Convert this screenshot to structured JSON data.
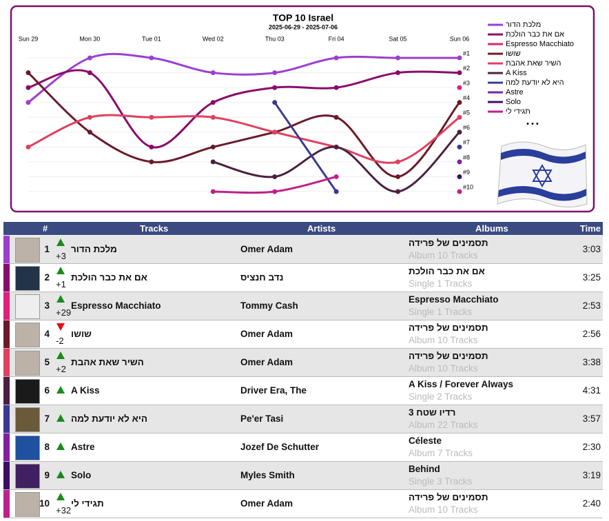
{
  "chart_data": {
    "type": "line",
    "title": "TOP 10 Israel",
    "subtitle": "2025-06-29 - 2025-07-06",
    "categories": [
      "Sun 29",
      "Mon 30",
      "Tue 01",
      "Wed 02",
      "Thu 03",
      "Fri 04",
      "Sat 05",
      "Sun 06"
    ],
    "y_reversed": true,
    "ylim": [
      1,
      10
    ],
    "yticks": [
      {
        "value": 1,
        "label": "#1"
      },
      {
        "value": 2,
        "label": "#2"
      },
      {
        "value": 3,
        "label": "#3"
      },
      {
        "value": 4,
        "label": "#4"
      },
      {
        "value": 5,
        "label": "#5"
      },
      {
        "value": 6,
        "label": "#6"
      },
      {
        "value": 7,
        "label": "#7"
      },
      {
        "value": 8,
        "label": "#8"
      },
      {
        "value": 9,
        "label": "#9"
      },
      {
        "value": 10,
        "label": "#10"
      }
    ],
    "grid": true,
    "series": [
      {
        "name": "מלכת הדור",
        "color": "#9b3fd0",
        "values": [
          4,
          1,
          1,
          2,
          2,
          1,
          1,
          1
        ]
      },
      {
        "name": "אם את כבר הולכת",
        "color": "#8b0a6b",
        "values": [
          3,
          2,
          7,
          4,
          3,
          3,
          2,
          2
        ]
      },
      {
        "name": "Espresso Macchiato",
        "color": "#e0207a",
        "values": [
          null,
          null,
          null,
          null,
          null,
          null,
          null,
          3
        ]
      },
      {
        "name": "שושו",
        "color": "#6b1a2a",
        "values": [
          2,
          6,
          8,
          7,
          6,
          5,
          9,
          4
        ]
      },
      {
        "name": "השיר שאת אהבת",
        "color": "#e04060",
        "values": [
          7,
          5,
          5,
          5,
          6,
          7,
          8,
          5
        ]
      },
      {
        "name": "A Kiss",
        "color": "#4a2040",
        "values": [
          null,
          null,
          null,
          8,
          9,
          7,
          10,
          6
        ]
      },
      {
        "name": "היא לא יודעת למה",
        "color": "#3a3a90",
        "values": [
          null,
          null,
          null,
          null,
          4,
          10,
          null,
          7
        ]
      },
      {
        "name": "Astre",
        "color": "#8020a0",
        "values": [
          null,
          null,
          null,
          null,
          null,
          null,
          null,
          8
        ]
      },
      {
        "name": "Solo",
        "color": "#3a1060",
        "values": [
          null,
          null,
          null,
          null,
          null,
          null,
          null,
          9
        ]
      },
      {
        "name": "תגידי לי",
        "color": "#c0208a",
        "values": [
          null,
          null,
          null,
          10,
          10,
          9,
          null,
          10
        ]
      }
    ],
    "legend_more": "• • •"
  },
  "table": {
    "headers": [
      "#",
      "Tracks",
      "Artists",
      "Albums",
      "Time"
    ],
    "rows": [
      {
        "rank": 1,
        "trend": "up",
        "change": "+3",
        "track": "מלכת הדור",
        "artist": "Omer Adam",
        "album": "תסמינים של פרידה",
        "album_info": "Album 10 Tracks",
        "time": "3:03"
      },
      {
        "rank": 2,
        "trend": "up",
        "change": "+1",
        "track": "אם את כבר הולכת",
        "artist": "נדב חנציס",
        "album": "אם את כבר הולכת",
        "album_info": "Single 1 Tracks",
        "time": "3:25"
      },
      {
        "rank": 3,
        "trend": "up",
        "change": "+29",
        "track": "Espresso Macchiato",
        "artist": "Tommy Cash",
        "album": "Espresso Macchiato",
        "album_info": "Single 1 Tracks",
        "time": "2:53"
      },
      {
        "rank": 4,
        "trend": "down",
        "change": "-2",
        "track": "שושו",
        "artist": "Omer Adam",
        "album": "תסמינים של פרידה",
        "album_info": "Album 10 Tracks",
        "time": "2:56"
      },
      {
        "rank": 5,
        "trend": "up",
        "change": "+2",
        "track": "השיר שאת אהבת",
        "artist": "Omer Adam",
        "album": "תסמינים של פרידה",
        "album_info": "Album 10 Tracks",
        "time": "3:38"
      },
      {
        "rank": 6,
        "trend": "up",
        "track": "A Kiss",
        "artist": "Driver Era, The",
        "album": "A Kiss / Forever Always",
        "album_info": "Single 2 Tracks",
        "time": "4:31"
      },
      {
        "rank": 7,
        "trend": "up",
        "track": "היא לא יודעת למה",
        "artist": "Pe'er Tasi",
        "album": "רדיו שטח 3",
        "album_info": "Album 22 Tracks",
        "time": "3:57"
      },
      {
        "rank": 8,
        "trend": "up",
        "track": "Astre",
        "artist": "Jozef De Schutter",
        "album": "Céleste",
        "album_info": "Album 7 Tracks",
        "time": "2:30"
      },
      {
        "rank": 9,
        "trend": "up",
        "track": "Solo",
        "artist": "Myles Smith",
        "album": "Behind",
        "album_info": "Single 3 Tracks",
        "time": "3:19"
      },
      {
        "rank": 10,
        "trend": "up",
        "change": "+32",
        "track": "תגידי לי",
        "artist": "Omer Adam",
        "album": "תסמינים של פרידה",
        "album_info": "Album 10 Tracks",
        "time": "2:40"
      }
    ]
  }
}
